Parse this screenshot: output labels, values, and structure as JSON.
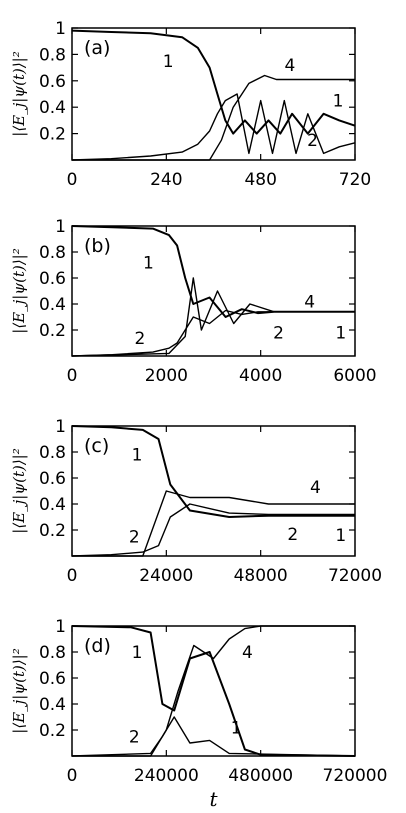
{
  "chart_data": [
    {
      "panel_label": "(a)",
      "type": "line",
      "ylabel": "|⟨E_j|ψ(t)⟩|²",
      "xlim": [
        0,
        720
      ],
      "ylim": [
        0,
        1
      ],
      "xticks": [
        "0",
        "240",
        "480",
        "720"
      ],
      "yticks": [
        "0.2",
        "0.4",
        "0.6",
        "0.8",
        "1"
      ],
      "series_labels": [
        "1",
        "4",
        "1",
        "2"
      ],
      "series": [
        {
          "name": "1",
          "x": [
            0,
            100,
            200,
            280,
            320,
            350,
            370,
            390,
            410,
            440,
            470,
            500,
            530,
            560,
            600,
            640,
            680,
            720
          ],
          "y": [
            0.98,
            0.97,
            0.96,
            0.93,
            0.85,
            0.7,
            0.5,
            0.3,
            0.2,
            0.3,
            0.2,
            0.3,
            0.2,
            0.35,
            0.2,
            0.35,
            0.3,
            0.26
          ]
        },
        {
          "name": "2",
          "x": [
            0,
            100,
            200,
            280,
            320,
            350,
            370,
            390,
            420,
            450,
            480,
            510,
            540,
            570,
            600,
            640,
            680,
            720
          ],
          "y": [
            0.0,
            0.01,
            0.03,
            0.06,
            0.12,
            0.22,
            0.35,
            0.45,
            0.5,
            0.05,
            0.45,
            0.05,
            0.45,
            0.05,
            0.35,
            0.05,
            0.1,
            0.13
          ]
        },
        {
          "name": "4",
          "x": [
            0,
            350,
            380,
            410,
            450,
            490,
            520,
            720
          ],
          "y": [
            0.0,
            0.0,
            0.15,
            0.4,
            0.58,
            0.64,
            0.61,
            0.61
          ]
        }
      ]
    },
    {
      "panel_label": "(b)",
      "type": "line",
      "ylabel": "|⟨E_j|ψ(t)⟩|²",
      "xlim": [
        0,
        7000
      ],
      "ylim": [
        0,
        1
      ],
      "xticks": [
        "0",
        "2000",
        "4000",
        "6000"
      ],
      "yticks": [
        "0.4",
        "0.6",
        "0.8",
        "1",
        "0.2"
      ],
      "series_labels": [
        "1",
        "2",
        "4",
        "2",
        "1"
      ],
      "series": [
        {
          "name": "1",
          "x": [
            0,
            1000,
            2000,
            2400,
            2600,
            2800,
            3000,
            3400,
            3800,
            4200,
            4600,
            5000,
            7000
          ],
          "y": [
            1.0,
            0.99,
            0.98,
            0.93,
            0.85,
            0.6,
            0.4,
            0.45,
            0.3,
            0.36,
            0.33,
            0.34,
            0.34
          ]
        },
        {
          "name": "2",
          "x": [
            0,
            1000,
            2000,
            2400,
            2600,
            2800,
            3000,
            3400,
            3800,
            4200,
            4600,
            5000,
            7000
          ],
          "y": [
            0.0,
            0.01,
            0.03,
            0.06,
            0.1,
            0.2,
            0.3,
            0.25,
            0.35,
            0.32,
            0.34,
            0.34,
            0.34
          ]
        },
        {
          "name": "4",
          "x": [
            0,
            2400,
            2800,
            3000,
            3200,
            3600,
            4000,
            4400,
            5000,
            7000
          ],
          "y": [
            0.0,
            0.02,
            0.15,
            0.6,
            0.2,
            0.5,
            0.25,
            0.4,
            0.34,
            0.34
          ]
        }
      ]
    },
    {
      "panel_label": "(c)",
      "type": "line",
      "ylabel": "|⟨E_j|ψ(t)⟩|²",
      "xlim": [
        0,
        72000
      ],
      "ylim": [
        0,
        1
      ],
      "xticks": [
        "0",
        "24000",
        "48000",
        "72000"
      ],
      "yticks": [
        "0.2",
        "0.4",
        "0.6",
        "0.8",
        "1"
      ],
      "series_labels": [
        "1",
        "2",
        "4",
        "2",
        "1"
      ],
      "series": [
        {
          "name": "1",
          "x": [
            0,
            10000,
            18000,
            22000,
            25000,
            30000,
            40000,
            50000,
            72000
          ],
          "y": [
            1.0,
            0.99,
            0.97,
            0.9,
            0.55,
            0.35,
            0.3,
            0.31,
            0.31
          ]
        },
        {
          "name": "2",
          "x": [
            0,
            10000,
            18000,
            22000,
            25000,
            30000,
            40000,
            50000,
            72000
          ],
          "y": [
            0.0,
            0.01,
            0.03,
            0.08,
            0.3,
            0.4,
            0.33,
            0.32,
            0.32
          ]
        },
        {
          "name": "4",
          "x": [
            0,
            18000,
            24000,
            30000,
            40000,
            50000,
            72000
          ],
          "y": [
            0.0,
            0.0,
            0.5,
            0.45,
            0.45,
            0.4,
            0.4
          ]
        }
      ]
    },
    {
      "panel_label": "(d)",
      "type": "line",
      "ylabel": "|⟨E_j|ψ(t)⟩|²",
      "xlabel": "t",
      "xlim": [
        0,
        720000
      ],
      "ylim": [
        0,
        1
      ],
      "xticks": [
        "0",
        "240000",
        "480000",
        "720000"
      ],
      "yticks": [
        "0.2",
        "0.4",
        "0.6",
        "0.8",
        "1"
      ],
      "series_labels": [
        "1",
        "4",
        "2",
        "1"
      ],
      "series": [
        {
          "name": "1",
          "x": [
            0,
            150000,
            200000,
            230000,
            260000,
            300000,
            350000,
            400000,
            440000,
            480000,
            720000
          ],
          "y": [
            1.0,
            0.99,
            0.95,
            0.4,
            0.35,
            0.75,
            0.8,
            0.4,
            0.05,
            0.01,
            0.0
          ]
        },
        {
          "name": "4",
          "x": [
            0,
            200000,
            240000,
            270000,
            310000,
            360000,
            400000,
            440000,
            480000,
            720000
          ],
          "y": [
            0.0,
            0.0,
            0.2,
            0.5,
            0.85,
            0.75,
            0.9,
            0.98,
            1.0,
            1.0
          ]
        },
        {
          "name": "2",
          "x": [
            0,
            200000,
            230000,
            260000,
            300000,
            350000,
            400000,
            720000
          ],
          "y": [
            0.0,
            0.02,
            0.15,
            0.3,
            0.1,
            0.12,
            0.02,
            0.0
          ]
        }
      ]
    }
  ]
}
